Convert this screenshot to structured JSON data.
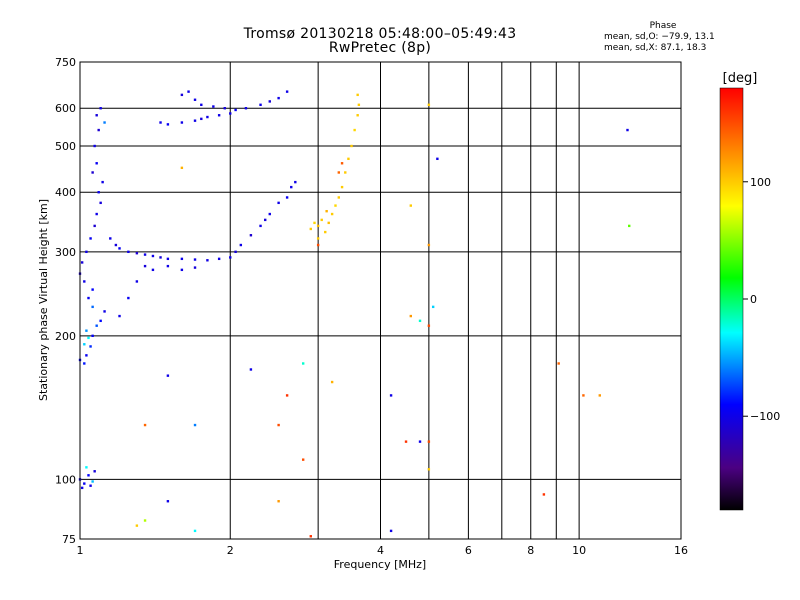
{
  "header": {
    "title_line1": "Tromsø 20130218 05:48:00–05:49:43",
    "title_line2": "RwPretec (8p)",
    "phase_title": "Phase",
    "phase_o": "mean, sd,O: −79.9, 13.1",
    "phase_x": "mean, sd,X:  87.1, 18.3"
  },
  "colors": {
    "grid": "#000000",
    "background": "#ffffff"
  },
  "chart_data": {
    "type": "scatter",
    "title": "Tromsø 20130218 05:48:00–05:49:43",
    "subtitle": "RwPretec (8p)",
    "xlabel": "Frequency [MHz]",
    "ylabel": "Stationary phase Virtual Height [km]",
    "x_scale": "log",
    "y_scale": "log",
    "xlim": [
      1,
      16
    ],
    "ylim": [
      75,
      750
    ],
    "x_ticks": [
      "1",
      "2",
      "4",
      "6",
      "8",
      "10",
      "16"
    ],
    "x_tick_values": [
      1,
      2,
      4,
      6,
      8,
      10,
      16
    ],
    "x_grid_values": [
      1,
      2,
      3,
      4,
      5,
      6,
      7,
      8,
      9,
      10,
      16
    ],
    "y_ticks": [
      "75",
      "100",
      "200",
      "300",
      "400",
      "500",
      "600",
      "750"
    ],
    "y_tick_values": [
      75,
      100,
      200,
      300,
      400,
      500,
      600,
      750
    ],
    "y_grid_values": [
      100,
      200,
      300,
      400,
      500,
      600
    ],
    "grid": true,
    "colorbar": {
      "label": "[deg]",
      "range": [
        -180,
        180
      ],
      "ticks": [
        "100",
        "0",
        "−100"
      ],
      "tick_values": [
        100,
        0,
        -100
      ],
      "placement": "right"
    },
    "series": [
      {
        "points": [
          [
            1.0,
            178,
            -90
          ],
          [
            1.02,
            175,
            -85
          ],
          [
            1.03,
            182,
            -95
          ],
          [
            1.05,
            190,
            -80
          ],
          [
            1.06,
            200,
            -92
          ],
          [
            1.08,
            210,
            -70
          ],
          [
            1.1,
            215,
            -88
          ],
          [
            1.12,
            225,
            -100
          ],
          [
            1.04,
            240,
            -95
          ],
          [
            1.06,
            250,
            -90
          ],
          [
            1.02,
            260,
            -100
          ],
          [
            1.0,
            270,
            -110
          ],
          [
            1.01,
            285,
            -105
          ],
          [
            1.03,
            300,
            -100
          ],
          [
            1.05,
            320,
            -95
          ],
          [
            1.07,
            340,
            -110
          ],
          [
            1.08,
            360,
            -100
          ],
          [
            1.1,
            380,
            -105
          ],
          [
            1.09,
            400,
            -98
          ],
          [
            1.11,
            420,
            -100
          ],
          [
            1.06,
            440,
            -110
          ],
          [
            1.08,
            460,
            -95
          ],
          [
            1.07,
            500,
            -100
          ],
          [
            1.09,
            540,
            -110
          ],
          [
            1.08,
            580,
            -105
          ],
          [
            1.1,
            600,
            -100
          ],
          [
            1.12,
            560,
            -60
          ],
          [
            1.02,
            192,
            -40
          ],
          [
            1.04,
            198,
            -30
          ],
          [
            1.03,
            205,
            -55
          ],
          [
            1.06,
            230,
            -65
          ],
          [
            1.15,
            320,
            -100
          ],
          [
            1.18,
            310,
            -105
          ],
          [
            1.2,
            305,
            -95
          ],
          [
            1.25,
            300,
            -100
          ],
          [
            1.3,
            298,
            -110
          ],
          [
            1.35,
            296,
            -100
          ],
          [
            1.4,
            294,
            -100
          ],
          [
            1.45,
            292,
            -105
          ],
          [
            1.5,
            290,
            -100
          ],
          [
            1.6,
            290,
            -98
          ],
          [
            1.7,
            289,
            -100
          ],
          [
            1.8,
            288,
            -102
          ],
          [
            1.9,
            290,
            -100
          ],
          [
            2.0,
            292,
            -100
          ],
          [
            2.05,
            300,
            -105
          ],
          [
            2.1,
            310,
            -100
          ],
          [
            2.2,
            325,
            -110
          ],
          [
            2.3,
            340,
            -100
          ],
          [
            2.35,
            350,
            -105
          ],
          [
            2.4,
            360,
            -100
          ],
          [
            2.5,
            380,
            -100
          ],
          [
            2.6,
            390,
            -95
          ],
          [
            2.65,
            410,
            -100
          ],
          [
            2.7,
            420,
            -100
          ],
          [
            1.2,
            220,
            -100
          ],
          [
            1.25,
            240,
            -95
          ],
          [
            1.3,
            260,
            -100
          ],
          [
            1.35,
            280,
            -105
          ],
          [
            1.4,
            275,
            -100
          ],
          [
            1.5,
            280,
            -100
          ],
          [
            1.6,
            275,
            -100
          ],
          [
            1.7,
            278,
            -105
          ],
          [
            1.45,
            560,
            -100
          ],
          [
            1.5,
            555,
            -95
          ],
          [
            1.6,
            560,
            -100
          ],
          [
            1.7,
            565,
            -100
          ],
          [
            1.75,
            570,
            -105
          ],
          [
            1.8,
            575,
            -100
          ],
          [
            1.9,
            580,
            -100
          ],
          [
            2.0,
            585,
            -100
          ],
          [
            2.05,
            595,
            -95
          ],
          [
            2.15,
            600,
            -100
          ],
          [
            2.3,
            610,
            -100
          ],
          [
            2.4,
            620,
            -105
          ],
          [
            2.5,
            630,
            -100
          ],
          [
            2.6,
            650,
            -100
          ],
          [
            1.65,
            650,
            -100
          ],
          [
            1.6,
            640,
            -105
          ],
          [
            1.7,
            625,
            -100
          ],
          [
            1.75,
            610,
            -100
          ],
          [
            1.85,
            605,
            -100
          ],
          [
            1.95,
            600,
            -105
          ],
          [
            3.1,
            330,
            100
          ],
          [
            3.15,
            345,
            105
          ],
          [
            3.2,
            360,
            100
          ],
          [
            3.25,
            375,
            95
          ],
          [
            3.3,
            390,
            100
          ],
          [
            3.35,
            410,
            100
          ],
          [
            3.4,
            440,
            100
          ],
          [
            3.45,
            470,
            100
          ],
          [
            3.5,
            500,
            100
          ],
          [
            3.55,
            540,
            95
          ],
          [
            3.6,
            580,
            100
          ],
          [
            3.62,
            610,
            100
          ],
          [
            3.0,
            340,
            105
          ],
          [
            3.05,
            350,
            100
          ],
          [
            3.12,
            365,
            110
          ],
          [
            3.0,
            320,
            100
          ],
          [
            2.9,
            335,
            100
          ],
          [
            2.95,
            345,
            95
          ],
          [
            3.3,
            440,
            140
          ],
          [
            3.35,
            460,
            145
          ],
          [
            3.0,
            310,
            150
          ],
          [
            3.6,
            640,
            100
          ],
          [
            1.0,
            100,
            -100
          ],
          [
            1.02,
            98,
            -95
          ],
          [
            1.04,
            102,
            -90
          ],
          [
            1.05,
            97,
            -100
          ],
          [
            1.07,
            104,
            -105
          ],
          [
            1.01,
            96,
            -100
          ],
          [
            1.03,
            106,
            -30
          ],
          [
            1.06,
            99,
            -45
          ],
          [
            4.2,
            150,
            -100
          ],
          [
            4.8,
            120,
            -100
          ],
          [
            5.0,
            120,
            150
          ],
          [
            5.0,
            105,
            100
          ],
          [
            4.6,
            220,
            120
          ],
          [
            4.8,
            215,
            -20
          ],
          [
            5.0,
            210,
            150
          ],
          [
            5.1,
            230,
            -40
          ],
          [
            5.2,
            470,
            -100
          ],
          [
            4.2,
            78,
            -100
          ],
          [
            8.5,
            93,
            160
          ],
          [
            9.1,
            175,
            140
          ],
          [
            10.2,
            150,
            140
          ],
          [
            11.0,
            150,
            120
          ],
          [
            12.5,
            540,
            -100
          ],
          [
            12.6,
            340,
            40
          ],
          [
            2.5,
            90,
            120
          ],
          [
            2.2,
            170,
            -100
          ],
          [
            1.5,
            165,
            -100
          ],
          [
            1.7,
            78,
            -30
          ],
          [
            1.3,
            80,
            100
          ],
          [
            1.35,
            82,
            60
          ],
          [
            1.7,
            130,
            -60
          ],
          [
            2.8,
            110,
            150
          ],
          [
            2.6,
            150,
            160
          ],
          [
            2.8,
            175,
            -20
          ],
          [
            2.5,
            130,
            150
          ],
          [
            2.9,
            76,
            160
          ],
          [
            3.2,
            160,
            110
          ],
          [
            4.5,
            120,
            160
          ],
          [
            4.6,
            375,
            100
          ],
          [
            5.0,
            610,
            100
          ],
          [
            5.0,
            310,
            120
          ],
          [
            1.5,
            90,
            -100
          ],
          [
            1.35,
            130,
            140
          ],
          [
            1.6,
            450,
            110
          ]
        ]
      }
    ]
  }
}
